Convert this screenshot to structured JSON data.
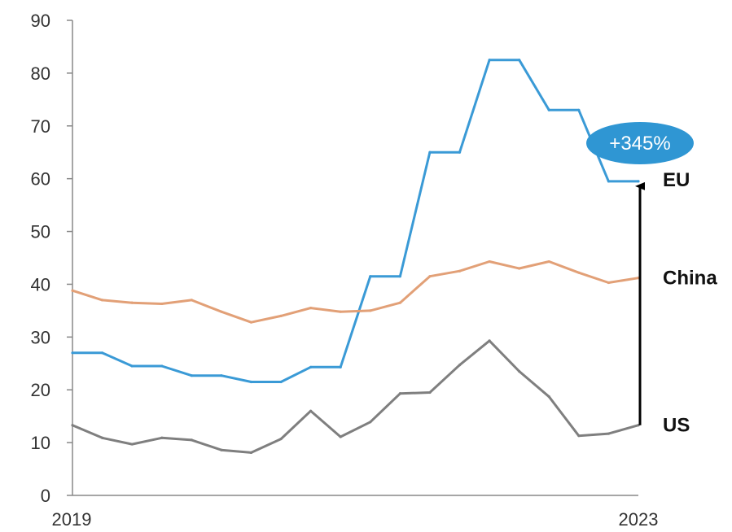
{
  "chart_data": {
    "type": "line",
    "title": "",
    "xlabel": "",
    "ylabel": "",
    "ylim": [
      0,
      90
    ],
    "yticks": [
      0,
      10,
      20,
      30,
      40,
      50,
      60,
      70,
      80,
      90
    ],
    "x_tick_labels": [
      "2019",
      "2023"
    ],
    "grid": false,
    "series": [
      {
        "name": "EU",
        "color": "#3a9ad6",
        "values": [
          27,
          27,
          24.5,
          24.5,
          22.7,
          22.7,
          21.5,
          21.5,
          24.3,
          24.3,
          41.5,
          41.5,
          65,
          65,
          82.5,
          82.5,
          73,
          73,
          59.5,
          59.5
        ]
      },
      {
        "name": "China",
        "color": "#e2a077",
        "values": [
          38.8,
          37,
          36.5,
          36.3,
          37,
          34.8,
          32.8,
          34,
          35.5,
          34.8,
          35,
          36.5,
          41.5,
          42.5,
          44.3,
          43,
          44.3,
          42.2,
          40.3,
          41.2
        ]
      },
      {
        "name": "US",
        "color": "#7f7f7f",
        "values": [
          13.3,
          10.9,
          9.7,
          10.9,
          10.5,
          8.6,
          8.1,
          10.7,
          16,
          11.1,
          13.9,
          19.3,
          19.5,
          24.7,
          29.3,
          23.5,
          18.7,
          11.3,
          11.7,
          13.3
        ]
      }
    ],
    "annotation": {
      "text": "+345%",
      "from_series": "US",
      "to_series": "EU",
      "badge_color": "#2f96d3"
    }
  }
}
